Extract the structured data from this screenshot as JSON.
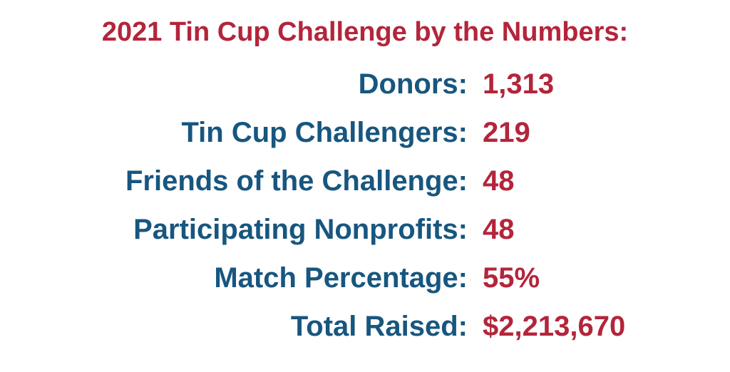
{
  "header": {
    "title": "2021 Tin Cup Challenge by the Numbers:"
  },
  "stats": [
    {
      "label": "Donors:",
      "value": "1,313"
    },
    {
      "label": "Tin Cup Challengers:",
      "value": "219"
    },
    {
      "label": "Friends of the Challenge:",
      "value": "48"
    },
    {
      "label": "Participating Nonprofits:",
      "value": "48"
    },
    {
      "label": "Match Percentage:",
      "value": "55%"
    },
    {
      "label": "Total Raised:",
      "value": "$2,213,670"
    }
  ]
}
